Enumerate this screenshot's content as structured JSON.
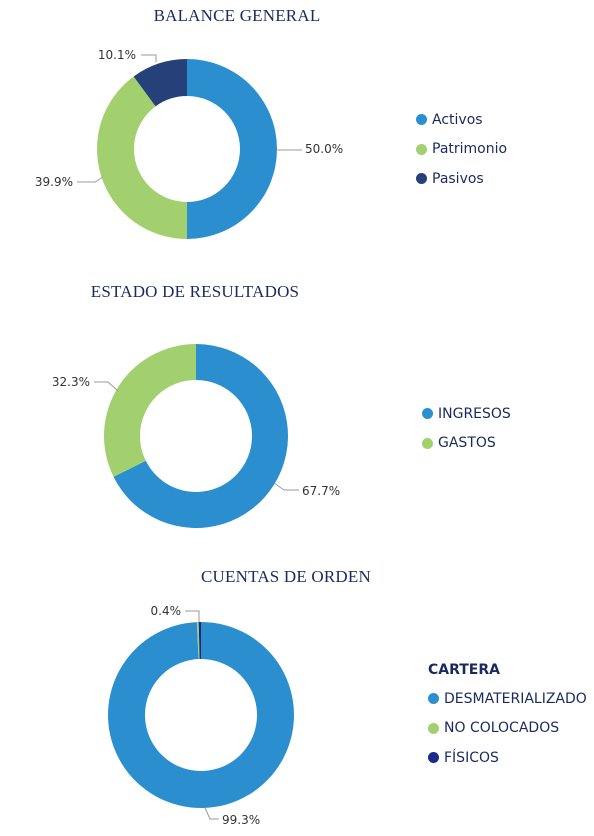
{
  "chart_data": [
    {
      "type": "pie",
      "title": "BALANCE GENERAL",
      "legend_title": "",
      "labels": [
        "Activos",
        "Patrimonio",
        "Pasivos"
      ],
      "values": [
        50.0,
        39.9,
        10.1
      ],
      "value_labels": [
        "50.0%",
        "39.9%",
        "10.1%"
      ],
      "colors": [
        "#2b8fcf",
        "#a3d06f",
        "#26407a"
      ],
      "legend": "right"
    },
    {
      "type": "pie",
      "title": "ESTADO DE RESULTADOS",
      "legend_title": "",
      "labels": [
        "INGRESOS",
        "GASTOS"
      ],
      "values": [
        67.7,
        32.3
      ],
      "value_labels": [
        "67.7%",
        "32.3%"
      ],
      "colors": [
        "#2b8fcf",
        "#a3d06f"
      ],
      "legend": "right"
    },
    {
      "type": "pie",
      "title": "CUENTAS DE ORDEN",
      "legend_title": "CARTERA",
      "labels": [
        "DESMATERIALIZADO",
        "NO COLOCADOS",
        "FÍSICOS"
      ],
      "values": [
        99.3,
        0.3,
        0.4
      ],
      "value_labels": [
        "99.3%",
        "",
        "0.4%"
      ],
      "colors": [
        "#2b8fcf",
        "#a3d06f",
        "#1a2a8c"
      ],
      "legend": "right"
    }
  ]
}
